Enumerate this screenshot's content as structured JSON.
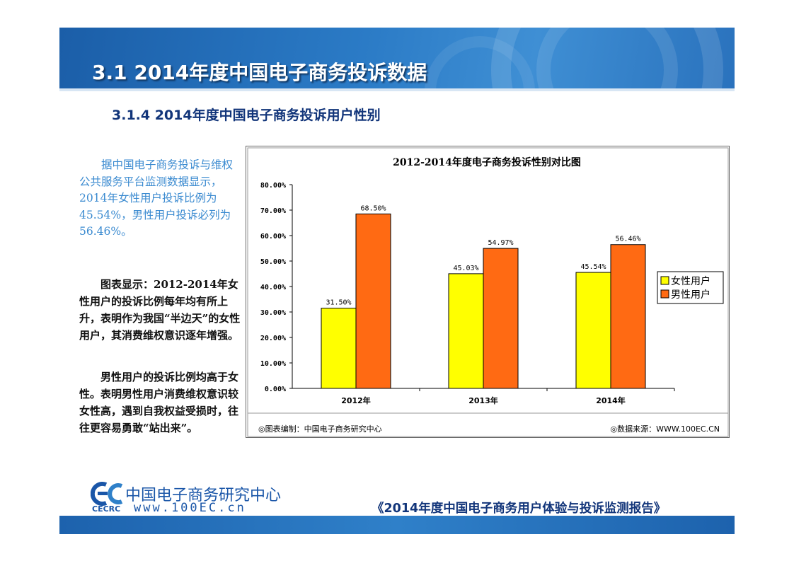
{
  "header": {
    "section_title": "3.1  2014年度中国电子商务投诉数据",
    "subsection_title": "3.1.4 2014年度中国电子商务投诉用户性别"
  },
  "text": {
    "paragraph_blue": "据中国电子商务投诉与维权公共服务平台监测数据显示，2014年女性用户投诉比例为45.54%，男性用户投诉必列为56.46%。",
    "paragraph_chart_note": "图表显示：2012-2014年女性用户的投诉比例每年均有所上升，表明作为我国“半边天”的女性用户，其消费维权意识逐年增强。",
    "paragraph_male_note": "男性用户的投诉比例均高于女性。表明男性用户消费维权意识较女性高，遇到自我权益受损时，往往更容易勇敢“站出来”。"
  },
  "chart_data": {
    "type": "bar",
    "title": "2012-2014年度电子商务投诉性别对比图",
    "categories": [
      "2012年",
      "2013年",
      "2014年"
    ],
    "series": [
      {
        "name": "女性用户",
        "values": [
          31.5,
          45.03,
          45.54
        ],
        "labels": [
          "31.50%",
          "45.03%",
          "45.54%"
        ],
        "color": "#ffff00"
      },
      {
        "name": "男性用户",
        "values": [
          68.5,
          54.97,
          56.46
        ],
        "labels": [
          "68.50%",
          "54.97%",
          "56.46%"
        ],
        "color": "#ff6a13"
      }
    ],
    "ylim": [
      0,
      80
    ],
    "yticks": [
      0,
      10,
      20,
      30,
      40,
      50,
      60,
      70,
      80
    ],
    "ytick_labels": [
      "0.00%",
      "10.00%",
      "20.00%",
      "30.00%",
      "40.00%",
      "50.00%",
      "60.00%",
      "70.00%",
      "80.00%"
    ],
    "xlabel": "",
    "ylabel": "",
    "legend_position": "right",
    "grid": false,
    "footer_left": "◎图表编制：中国电子商务研究中心",
    "footer_right": "◎数据来源：WWW.100EC.CN"
  },
  "footer": {
    "org_name": "中国电子商务研究中心",
    "org_abbr": "CECRC",
    "website": "www.100EC.cn",
    "report_title": "《2014年度中国电子商务用户体验与投诉监测报告》"
  },
  "colors": {
    "brand_blue": "#1b5ea8",
    "title_text": "#12357a",
    "highlight_text": "#3a8ad0"
  }
}
